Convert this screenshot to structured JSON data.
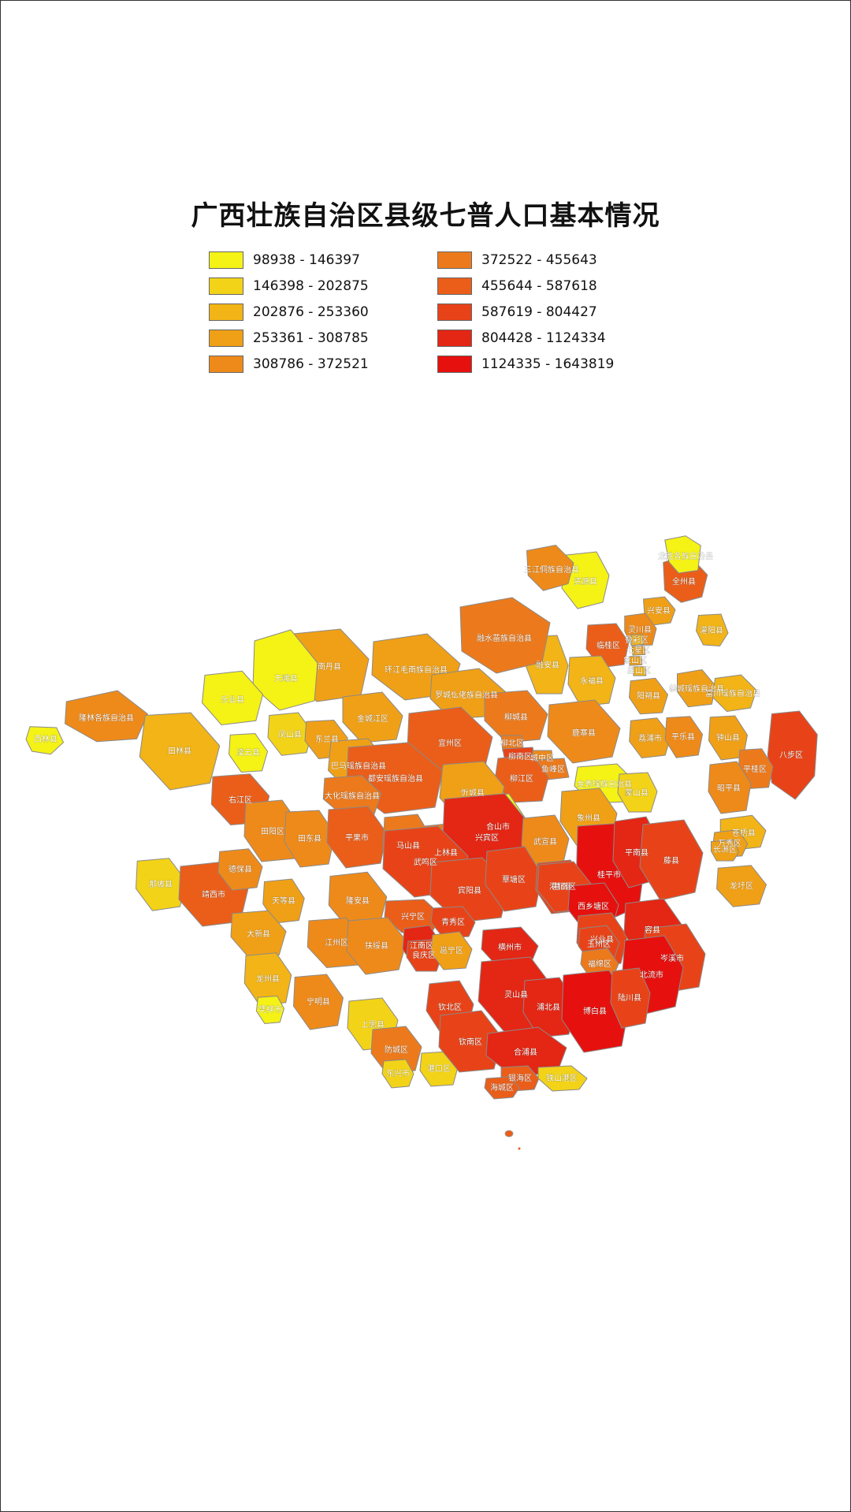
{
  "title": "广西壮族自治区县级七普人口基本情况",
  "legend": [
    {
      "label": "98938 - 146397",
      "color": "#f5f215"
    },
    {
      "label": "146398 - 202875",
      "color": "#f3d317"
    },
    {
      "label": "202876 - 253360",
      "color": "#f2b416"
    },
    {
      "label": "253361 - 308785",
      "color": "#f0a016"
    },
    {
      "label": "308786 - 372521",
      "color": "#ee8a1a"
    },
    {
      "label": "372522 - 455643",
      "color": "#ec7a1c"
    },
    {
      "label": "455644 - 587618",
      "color": "#ea5e1a"
    },
    {
      "label": "587619 - 804427",
      "color": "#e84318"
    },
    {
      "label": "804428 - 1124334",
      "color": "#e42614"
    },
    {
      "label": "1124335 - 1643819",
      "color": "#e6110e"
    }
  ],
  "map": {
    "regions": [
      {
        "name": "全州县",
        "color": "#ea5e1a"
      },
      {
        "name": "资源县",
        "color": "#f5f215"
      },
      {
        "name": "龙胜各族自治县",
        "color": "#f5f215"
      },
      {
        "name": "三江侗族自治县",
        "color": "#ee8a1a"
      },
      {
        "name": "兴安县",
        "color": "#f0a016"
      },
      {
        "name": "灌阳县",
        "color": "#f2b416"
      },
      {
        "name": "灵川县",
        "color": "#ee8a1a"
      },
      {
        "name": "临桂区",
        "color": "#ea5e1a"
      },
      {
        "name": "叠彩区",
        "color": "#f2b416"
      },
      {
        "name": "七星区",
        "color": "#f0a016"
      },
      {
        "name": "象山区",
        "color": "#f0a016"
      },
      {
        "name": "雁山区",
        "color": "#f2b416"
      },
      {
        "name": "融安县",
        "color": "#f2b416"
      },
      {
        "name": "永福县",
        "color": "#f2b416"
      },
      {
        "name": "阳朔县",
        "color": "#f0a016"
      },
      {
        "name": "恭城瑶族自治县",
        "color": "#f0a016"
      },
      {
        "name": "富川瑶族自治县",
        "color": "#f2b416"
      },
      {
        "name": "融水苗族自治县",
        "color": "#ec7a1c"
      },
      {
        "name": "南丹县",
        "color": "#f0a016"
      },
      {
        "name": "环江毛南族自治县",
        "color": "#f0a016"
      },
      {
        "name": "天峨县",
        "color": "#f5f215"
      },
      {
        "name": "罗城仫佬族自治县",
        "color": "#f0a016"
      },
      {
        "name": "西林县",
        "color": "#f5f215"
      },
      {
        "name": "隆林各族自治县",
        "color": "#ee8a1a"
      },
      {
        "name": "田林县",
        "color": "#f2b416"
      },
      {
        "name": "乐业县",
        "color": "#f5f215"
      },
      {
        "name": "凤山县",
        "color": "#f3d317"
      },
      {
        "name": "东兰县",
        "color": "#f0a016"
      },
      {
        "name": "凌云县",
        "color": "#f5f215"
      },
      {
        "name": "金城江区",
        "color": "#f0a016"
      },
      {
        "name": "宜州区",
        "color": "#ea5e1a"
      },
      {
        "name": "柳城县",
        "color": "#ec7a1c"
      },
      {
        "name": "鹿寨县",
        "color": "#ee8a1a"
      },
      {
        "name": "荔浦市",
        "color": "#f0a016"
      },
      {
        "name": "平乐县",
        "color": "#ee8a1a"
      },
      {
        "name": "钟山县",
        "color": "#f0a016"
      },
      {
        "name": "八步区",
        "color": "#e84318"
      },
      {
        "name": "平桂区",
        "color": "#ec7a1c"
      },
      {
        "name": "柳北区",
        "color": "#ec7a1c"
      },
      {
        "name": "柳南区",
        "color": "#e84318"
      },
      {
        "name": "城中区",
        "color": "#ee8a1a"
      },
      {
        "name": "鱼峰区",
        "color": "#ec7a1c"
      },
      {
        "name": "柳江区",
        "color": "#ea5e1a"
      },
      {
        "name": "巴马瑶族自治县",
        "color": "#f0a016"
      },
      {
        "name": "都安瑶族自治县",
        "color": "#ea5e1a"
      },
      {
        "name": "大化瑶族自治县",
        "color": "#ec7a1c"
      },
      {
        "name": "忻城县",
        "color": "#f0a016"
      },
      {
        "name": "金秀瑶族自治县",
        "color": "#f5f215"
      },
      {
        "name": "蒙山县",
        "color": "#f3d317"
      },
      {
        "name": "象州县",
        "color": "#f0a016"
      },
      {
        "name": "昭平县",
        "color": "#ee8a1a"
      },
      {
        "name": "右江区",
        "color": "#ea5e1a"
      },
      {
        "name": "田阳区",
        "color": "#ee8a1a"
      },
      {
        "name": "田东县",
        "color": "#ee8a1a"
      },
      {
        "name": "平果市",
        "color": "#ea5e1a"
      },
      {
        "name": "马山县",
        "color": "#ec7a1c"
      },
      {
        "name": "上林县",
        "color": "#ec7a1c"
      },
      {
        "name": "合山市",
        "color": "#f5f215"
      },
      {
        "name": "兴宾区",
        "color": "#e42614"
      },
      {
        "name": "武宣县",
        "color": "#ee8a1a"
      },
      {
        "name": "桂平市",
        "color": "#e6110e"
      },
      {
        "name": "平南县",
        "color": "#e42614"
      },
      {
        "name": "藤县",
        "color": "#e84318"
      },
      {
        "name": "苍梧县",
        "color": "#f2b416"
      },
      {
        "name": "万秀区",
        "color": "#f0a016"
      },
      {
        "name": "长洲区",
        "color": "#f0a016"
      },
      {
        "name": "龙圩区",
        "color": "#f0a016"
      },
      {
        "name": "那坡县",
        "color": "#f3d317"
      },
      {
        "name": "靖西市",
        "color": "#ea5e1a"
      },
      {
        "name": "德保县",
        "color": "#ee8a1a"
      },
      {
        "name": "天等县",
        "color": "#f0a016"
      },
      {
        "name": "隆安县",
        "color": "#ee8a1a"
      },
      {
        "name": "武鸣区",
        "color": "#e84318"
      },
      {
        "name": "宾阳县",
        "color": "#e84318"
      },
      {
        "name": "覃塘区",
        "color": "#e84318"
      },
      {
        "name": "港北区",
        "color": "#e84318"
      },
      {
        "name": "港南区",
        "color": "#e84318"
      },
      {
        "name": "西乡塘区",
        "color": "#e6110e"
      },
      {
        "name": "兴宁区",
        "color": "#ea5e1a"
      },
      {
        "name": "青秀区",
        "color": "#e84318"
      },
      {
        "name": "横州市",
        "color": "#e42614"
      },
      {
        "name": "兴业县",
        "color": "#e84318"
      },
      {
        "name": "容县",
        "color": "#e42614"
      },
      {
        "name": "岑溪市",
        "color": "#e84318"
      },
      {
        "name": "大新县",
        "color": "#f0a016"
      },
      {
        "name": "江州区",
        "color": "#ee8a1a"
      },
      {
        "name": "扶绥县",
        "color": "#ee8a1a"
      },
      {
        "name": "江南区",
        "color": "#e42614"
      },
      {
        "name": "良庆区",
        "color": "#e84318"
      },
      {
        "name": "邕宁区",
        "color": "#f0a016"
      },
      {
        "name": "玉州区",
        "color": "#e84318"
      },
      {
        "name": "福绵区",
        "color": "#ec7a1c"
      },
      {
        "name": "北流市",
        "color": "#e6110e"
      },
      {
        "name": "龙州县",
        "color": "#f2b416"
      },
      {
        "name": "凭祥市",
        "color": "#f5f215"
      },
      {
        "name": "宁明县",
        "color": "#ee8a1a"
      },
      {
        "name": "上思县",
        "color": "#f3d317"
      },
      {
        "name": "钦北区",
        "color": "#e84318"
      },
      {
        "name": "灵山县",
        "color": "#e42614"
      },
      {
        "name": "浦北县",
        "color": "#e42614"
      },
      {
        "name": "博白县",
        "color": "#e6110e"
      },
      {
        "name": "陆川县",
        "color": "#e84318"
      },
      {
        "name": "防城区",
        "color": "#ec7a1c"
      },
      {
        "name": "东兴市",
        "color": "#f3d317"
      },
      {
        "name": "港口区",
        "color": "#f3d317"
      },
      {
        "name": "钦南区",
        "color": "#e84318"
      },
      {
        "name": "合浦县",
        "color": "#e42614"
      },
      {
        "name": "银海区",
        "color": "#ea5e1a"
      },
      {
        "name": "铁山港区",
        "color": "#f3d317"
      },
      {
        "name": "海城区",
        "color": "#ea5e1a"
      }
    ]
  }
}
